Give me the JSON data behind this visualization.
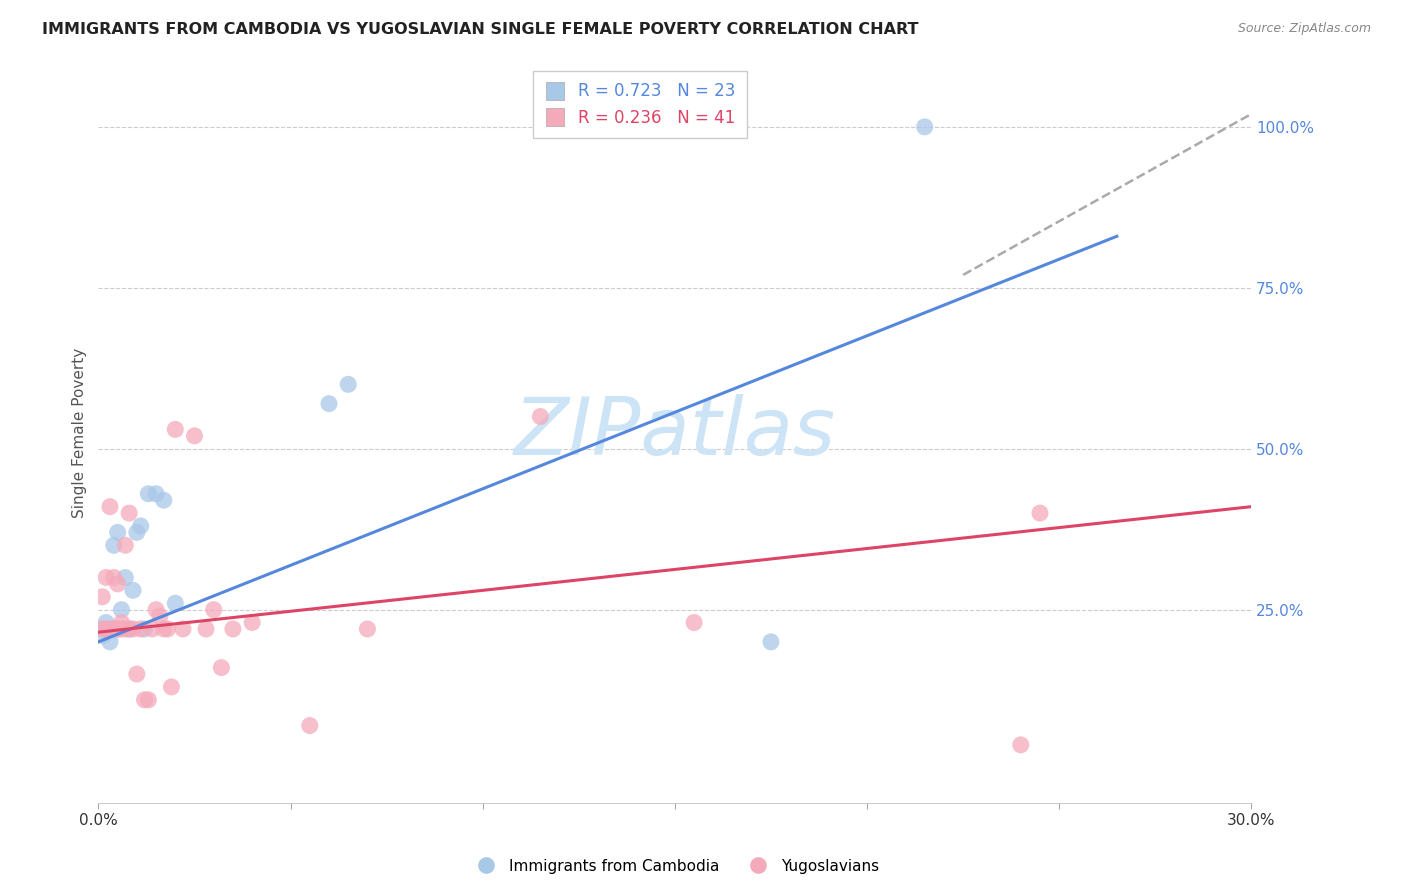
{
  "title": "IMMIGRANTS FROM CAMBODIA VS YUGOSLAVIAN SINGLE FEMALE POVERTY CORRELATION CHART",
  "source": "Source: ZipAtlas.com",
  "ylabel": "Single Female Poverty",
  "xlim": [
    0.0,
    0.3
  ],
  "ylim": [
    -0.05,
    1.1
  ],
  "right_yticks": [
    0.25,
    0.5,
    0.75,
    1.0
  ],
  "right_yticklabels": [
    "25.0%",
    "50.0%",
    "75.0%",
    "100.0%"
  ],
  "xticks": [
    0.0,
    0.05,
    0.1,
    0.15,
    0.2,
    0.25,
    0.3
  ],
  "xticklabels": [
    "0.0%",
    "",
    "",
    "",
    "",
    "",
    "30.0%"
  ],
  "grid_yticks": [
    0.25,
    0.5,
    0.75,
    1.0
  ],
  "blue_R": "0.723",
  "blue_N": "23",
  "pink_R": "0.236",
  "pink_N": "41",
  "blue_color": "#a8c8e8",
  "pink_color": "#f5aabb",
  "blue_line_color": "#5588dd",
  "pink_line_color": "#dd4466",
  "dash_line_color": "#aaaaaa",
  "watermark": "ZIPatlas",
  "watermark_color": "#cce4f5",
  "bottom_legend_blue": "Immigrants from Cambodia",
  "bottom_legend_pink": "Yugoslavians",
  "blue_scatter_x": [
    0.001,
    0.002,
    0.002,
    0.003,
    0.004,
    0.004,
    0.005,
    0.005,
    0.006,
    0.007,
    0.008,
    0.009,
    0.01,
    0.011,
    0.012,
    0.013,
    0.015,
    0.017,
    0.02,
    0.06,
    0.065,
    0.175,
    0.215
  ],
  "blue_scatter_y": [
    0.21,
    0.22,
    0.23,
    0.2,
    0.22,
    0.35,
    0.37,
    0.22,
    0.25,
    0.3,
    0.22,
    0.28,
    0.37,
    0.38,
    0.22,
    0.43,
    0.43,
    0.42,
    0.26,
    0.57,
    0.6,
    0.2,
    1.0
  ],
  "pink_scatter_x": [
    0.001,
    0.001,
    0.002,
    0.002,
    0.003,
    0.003,
    0.004,
    0.004,
    0.005,
    0.005,
    0.006,
    0.006,
    0.007,
    0.007,
    0.008,
    0.008,
    0.009,
    0.01,
    0.011,
    0.012,
    0.013,
    0.014,
    0.015,
    0.016,
    0.017,
    0.018,
    0.019,
    0.02,
    0.022,
    0.025,
    0.028,
    0.03,
    0.032,
    0.035,
    0.04,
    0.055,
    0.07,
    0.115,
    0.155,
    0.24,
    0.245
  ],
  "pink_scatter_y": [
    0.22,
    0.27,
    0.22,
    0.3,
    0.22,
    0.41,
    0.3,
    0.22,
    0.22,
    0.29,
    0.22,
    0.23,
    0.22,
    0.35,
    0.22,
    0.4,
    0.22,
    0.15,
    0.22,
    0.11,
    0.11,
    0.22,
    0.25,
    0.24,
    0.22,
    0.22,
    0.13,
    0.53,
    0.22,
    0.52,
    0.22,
    0.25,
    0.16,
    0.22,
    0.23,
    0.07,
    0.22,
    0.55,
    0.23,
    0.04,
    0.4
  ],
  "blue_trend_x": [
    0.0,
    0.265
  ],
  "blue_trend_y": [
    0.2,
    0.83
  ],
  "pink_trend_x": [
    0.0,
    0.3
  ],
  "pink_trend_y": [
    0.215,
    0.41
  ],
  "dash_trend_x": [
    0.225,
    0.3
  ],
  "dash_trend_y": [
    0.77,
    1.02
  ]
}
